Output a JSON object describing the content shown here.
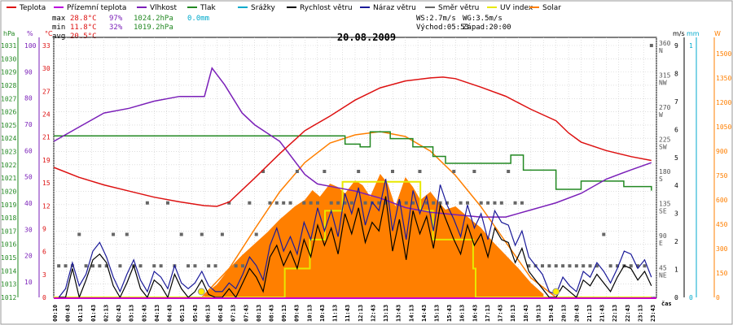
{
  "colors": {
    "teplota": "#dd1111",
    "prizemni": "#bb00dd",
    "vlhkost": "#7a1fb8",
    "tlak": "#228822",
    "srazky": "#00aacc",
    "rychlost": "#000000",
    "naraz": "#1a1a99",
    "smer": "#666666",
    "uv": "#e8e800",
    "solar": "#ff7f00",
    "grid": "#cccccc",
    "dateline": "#cc00cc"
  },
  "legend": [
    {
      "key": "teplota",
      "label": "Teplota",
      "color": "#dd1111"
    },
    {
      "key": "prizemni",
      "label": "Přízemní teplota",
      "color": "#bb00dd"
    },
    {
      "key": "vlhkost",
      "label": "Vlhkost",
      "color": "#7a1fb8"
    },
    {
      "key": "tlak",
      "label": "Tlak",
      "color": "#228822"
    },
    {
      "key": "srazky",
      "label": "Srážky",
      "color": "#00aacc"
    },
    {
      "key": "rychlost",
      "label": "Rychlost větru",
      "color": "#000000"
    },
    {
      "key": "naraz",
      "label": "Náraz větru",
      "color": "#1a1a99"
    },
    {
      "key": "smer",
      "label": "Směr větru",
      "color": "#666666"
    },
    {
      "key": "uv",
      "label": "UV index",
      "color": "#e8e800"
    },
    {
      "key": "solar",
      "label": "Solar",
      "color": "#ff7f00"
    }
  ],
  "stats": {
    "max_label": "max",
    "max_temp": "28.8°C",
    "max_hum": "97%",
    "max_press": "1024.2hPa",
    "max_rain": "0.0mm",
    "min_label": "min",
    "min_temp": "11.8°C",
    "min_hum": "32%",
    "min_press": "1019.2hPa",
    "avg_label": "avg",
    "avg_temp": "20.5°C",
    "ws": "WS:2.7m/s",
    "wg": "WG:3.5m/s",
    "sunrise": "Východ:05:53",
    "sunset": "Západ:20:00"
  },
  "chart_data": {
    "type": "line",
    "title": "20.08.2009",
    "x_unit": "čas",
    "x_tick_labels": [
      "00:10",
      "00:43",
      "01:13",
      "01:43",
      "02:13",
      "02:43",
      "03:13",
      "03:43",
      "04:13",
      "04:43",
      "05:13",
      "05:43",
      "06:13",
      "06:43",
      "07:13",
      "07:43",
      "08:13",
      "08:43",
      "09:13",
      "09:43",
      "10:13",
      "10:43",
      "11:13",
      "11:43",
      "12:13",
      "12:43",
      "13:13",
      "13:43",
      "14:13",
      "14:43",
      "15:13",
      "15:43",
      "16:13",
      "16:43",
      "17:13",
      "17:43",
      "18:13",
      "18:43",
      "19:13",
      "19:43",
      "20:13",
      "20:43",
      "21:13",
      "21:43",
      "22:13",
      "22:43",
      "23:13",
      "23:43"
    ],
    "axes": {
      "hpa": {
        "label": "hPa",
        "range": [
          1012,
          1031
        ],
        "ticks": [
          "1031",
          "1030",
          "1029",
          "1028",
          "1027",
          "1026",
          "1025",
          "1024",
          "1023",
          "1022",
          "1021",
          "1020",
          "1019",
          "1018",
          "1017",
          "1016",
          "1015",
          "1014",
          "1013",
          "1012"
        ]
      },
      "pct": {
        "label": "%",
        "range": [
          0,
          100
        ],
        "ticks": [
          "100",
          "90",
          "80",
          "70",
          "60",
          "50",
          "40",
          "30",
          "20",
          "10"
        ]
      },
      "degc": {
        "label": "°C",
        "range": [
          0,
          33
        ],
        "ticks": [
          "33",
          "30",
          "27",
          "24",
          "21",
          "19",
          "15",
          "12",
          "9",
          "6",
          "3",
          "0"
        ]
      },
      "dir": {
        "label": "",
        "ticks": [
          "360 N",
          "315 NW",
          "270 W",
          "225 SW",
          "180 S",
          "135 SE",
          "90 E",
          "45 NE"
        ]
      },
      "ms": {
        "label": "m/s",
        "range": [
          0,
          9
        ],
        "ticks": [
          "9",
          "8",
          "7",
          "6",
          "5",
          "4",
          "3",
          "2",
          "1",
          "0"
        ]
      },
      "mm": {
        "label": "mm",
        "ticks": [
          "1",
          "0"
        ]
      },
      "w": {
        "label": "W",
        "range": [
          0,
          1600
        ],
        "ticks": [
          "1500",
          "1350",
          "1200",
          "1050",
          "900",
          "750",
          "600",
          "450",
          "300",
          "150",
          "0"
        ]
      }
    },
    "series": [
      {
        "name": "Teplota",
        "unit": "°C",
        "hours": [
          0,
          1,
          2,
          3,
          4,
          5,
          6,
          6.5,
          7,
          8,
          9,
          10,
          11,
          12,
          13,
          14,
          15,
          15.5,
          16,
          17,
          18,
          19,
          20,
          20.5,
          21,
          22,
          23,
          23.8
        ],
        "values": [
          17,
          15.7,
          14.7,
          13.9,
          13.1,
          12.5,
          12,
          11.9,
          12.5,
          15.6,
          18.8,
          21.8,
          23.7,
          25.8,
          27.4,
          28.3,
          28.7,
          28.8,
          28.6,
          27.5,
          26.3,
          24.6,
          23.1,
          21.5,
          20.3,
          19.2,
          18.4,
          17.9
        ]
      },
      {
        "name": "Vlhkost",
        "unit": "%",
        "hours": [
          0,
          1,
          2,
          3,
          4,
          5,
          6,
          6.3,
          6.8,
          7.5,
          8,
          9,
          10,
          10.5,
          11,
          12,
          13,
          14,
          15,
          16,
          17,
          18,
          19,
          20,
          21,
          22,
          23,
          23.8
        ],
        "values": [
          66,
          72,
          78,
          80,
          83,
          85,
          85,
          97,
          90,
          78,
          73,
          66,
          52,
          48,
          47,
          45,
          42,
          38,
          36,
          35,
          34,
          34,
          37,
          40,
          44,
          50,
          54,
          57
        ]
      },
      {
        "name": "Tlak",
        "unit": "hPa",
        "steps": [
          [
            0,
            1023.8
          ],
          [
            11.6,
            1023.2
          ],
          [
            12.2,
            1023
          ],
          [
            12.6,
            1024.1
          ],
          [
            13.4,
            1023.6
          ],
          [
            14.3,
            1023
          ],
          [
            15.1,
            1022.3
          ],
          [
            15.6,
            1021.8
          ],
          [
            18.2,
            1022.4
          ],
          [
            18.7,
            1021.3
          ],
          [
            20.0,
            1019.9
          ],
          [
            21.0,
            1020.5
          ],
          [
            22.7,
            1020.1
          ],
          [
            23.8,
            1019.8
          ]
        ]
      },
      {
        "name": "Rychlost větru",
        "unit": "m/s",
        "values": [
          0,
          0,
          1,
          0,
          0.6,
          1.3,
          1.5,
          1.2,
          0.4,
          0,
          0.5,
          1.1,
          0.3,
          0,
          0.6,
          0.4,
          0,
          0.8,
          0.3,
          0,
          0.2,
          0.6,
          0.1,
          0,
          0,
          0.3,
          0,
          0.5,
          1.0,
          0.7,
          0.2,
          1.4,
          1.8,
          1.1,
          1.6,
          1.0,
          2.0,
          1.4,
          2.5,
          1.8,
          2.4,
          1.5,
          2.9,
          2.2,
          3.1,
          1.9,
          2.6,
          2.3,
          3.5,
          1.6,
          2.7,
          1.3,
          3.0,
          2.2,
          2.8,
          1.7,
          3.2,
          2.6,
          2.0,
          1.5,
          2.5,
          1.8,
          2.2,
          1.4,
          2.4,
          2.0,
          1.9,
          1.2,
          1.7,
          0.9,
          0.6,
          0.3,
          0,
          0,
          0.4,
          0.2,
          0,
          0.6,
          0.4,
          0.8,
          0.5,
          0.2,
          0.7,
          1.1,
          1.0,
          0.6,
          0.9,
          0.4
        ]
      },
      {
        "name": "Náraz větru",
        "unit": "m/s",
        "values": [
          0,
          0.3,
          1.2,
          0.4,
          0.8,
          1.6,
          1.9,
          1.4,
          0.7,
          0.2,
          0.8,
          1.3,
          0.6,
          0.2,
          0.9,
          0.7,
          0.3,
          1.1,
          0.5,
          0.3,
          0.5,
          0.9,
          0.4,
          0.2,
          0.2,
          0.5,
          0.3,
          0.8,
          1.4,
          1.1,
          0.6,
          1.8,
          2.4,
          1.6,
          2.1,
          1.5,
          2.6,
          2.0,
          3.1,
          2.3,
          3.0,
          2.1,
          3.6,
          2.9,
          3.8,
          2.5,
          3.3,
          3.0,
          4.1,
          2.3,
          3.4,
          2.0,
          3.7,
          2.9,
          3.5,
          2.3,
          3.9,
          3.2,
          2.7,
          2.1,
          3.2,
          2.4,
          2.9,
          2.0,
          3.0,
          2.6,
          2.5,
          1.8,
          2.3,
          1.4,
          1.1,
          0.8,
          0.2,
          0.1,
          0.7,
          0.4,
          0.2,
          0.9,
          0.7,
          1.2,
          0.9,
          0.5,
          1.0,
          1.6,
          1.5,
          1.0,
          1.3,
          0.7
        ]
      },
      {
        "name": "Směr větru",
        "unit": "°",
        "values": [
          45,
          45,
          45,
          90,
          45,
          45,
          45,
          45,
          90,
          45,
          90,
          45,
          45,
          135,
          45,
          45,
          135,
          45,
          90,
          45,
          45,
          90,
          45,
          45,
          90,
          135,
          45,
          45,
          135,
          90,
          180,
          135,
          135,
          135,
          135,
          180,
          135,
          135,
          135,
          180,
          135,
          135,
          135,
          135,
          180,
          135,
          135,
          135,
          135,
          180,
          135,
          135,
          135,
          180,
          135,
          135,
          135,
          135,
          180,
          135,
          135,
          180,
          135,
          135,
          135,
          135,
          180,
          135,
          135,
          45,
          45,
          45,
          45,
          45,
          45,
          45,
          45,
          45,
          45,
          45,
          90,
          45,
          45,
          45,
          45,
          45,
          45,
          360
        ]
      },
      {
        "name": "UV index",
        "unit": "",
        "steps": [
          [
            0,
            0
          ],
          [
            9.1,
            0
          ],
          [
            9.2,
            1
          ],
          [
            10.2,
            2
          ],
          [
            10.8,
            3
          ],
          [
            11.5,
            4
          ],
          [
            14.4,
            4
          ],
          [
            14.6,
            3
          ],
          [
            15.1,
            2
          ],
          [
            16.5,
            2
          ],
          [
            16.7,
            1
          ],
          [
            16.8,
            0
          ],
          [
            23.8,
            0
          ]
        ]
      },
      {
        "name": "Solar",
        "unit": "W/m²",
        "hours": [
          6,
          6.5,
          7,
          7.5,
          8,
          8.5,
          9,
          9.3,
          9.6,
          10,
          10.3,
          10.6,
          11,
          11.3,
          11.6,
          12,
          12.3,
          12.6,
          13,
          13.3,
          13.6,
          14,
          14.3,
          14.6,
          15,
          15.3,
          15.6,
          16,
          16.3,
          16.6,
          17,
          17.5,
          18,
          18.5,
          19,
          19.5
        ],
        "values": [
          20,
          80,
          180,
          260,
          330,
          400,
          480,
          520,
          560,
          600,
          660,
          620,
          700,
          680,
          640,
          720,
          690,
          620,
          760,
          700,
          560,
          740,
          680,
          600,
          650,
          590,
          540,
          560,
          520,
          480,
          430,
          340,
          260,
          180,
          90,
          20
        ]
      },
      {
        "name": "Solar max",
        "unit": "W/m²",
        "hours": [
          5.9,
          7,
          8,
          9,
          10,
          11,
          12,
          13,
          14,
          15,
          16,
          17,
          18,
          19,
          20
        ],
        "values": [
          0,
          180,
          420,
          650,
          830,
          950,
          1000,
          1020,
          990,
          900,
          750,
          560,
          340,
          120,
          0
        ]
      }
    ]
  }
}
